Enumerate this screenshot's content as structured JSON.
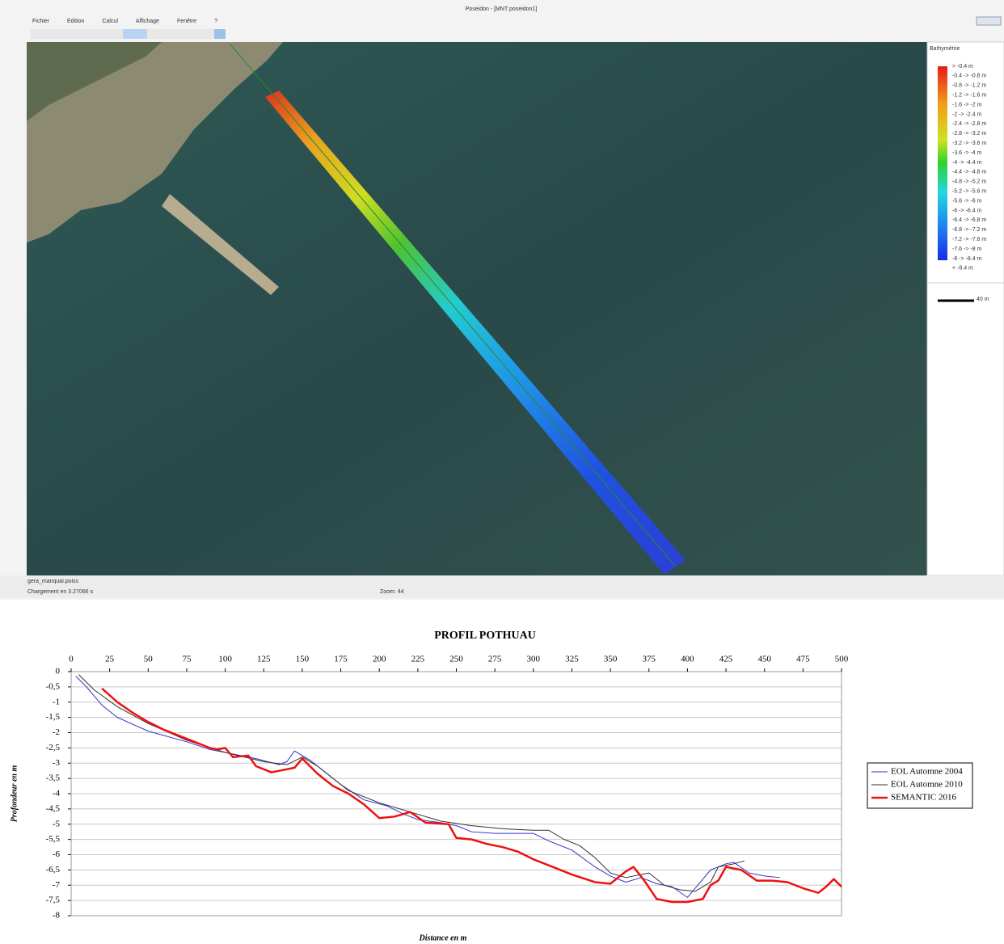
{
  "window": {
    "title": "Poseidon - [MNT poseidon1]",
    "menu": [
      "Fichier",
      "Edition",
      "Calcul",
      "Affichage",
      "Fenêtre",
      "?"
    ],
    "legend_title": "Bathymétrie",
    "legend_labels": [
      "> -0.4 m",
      "-0.4 -> -0.8 m",
      "-0.8 -> -1.2 m",
      "-1.2 -> -1.6 m",
      "-1.6 -> -2 m",
      "-2 -> -2.4 m",
      "-2.4 -> -2.8 m",
      "-2.8 -> -3.2 m",
      "-3.2 -> -3.6 m",
      "-3.6 -> -4 m",
      "-4 -> -4.4 m",
      "-4.4 -> -4.8 m",
      "-4.8 -> -5.2 m",
      "-5.2 -> -5.6 m",
      "-5.6 -> -6 m",
      "-6 -> -6.4 m",
      "-6.4 -> -6.8 m",
      "-6.8 -> -7.2 m",
      "-7.2 -> -7.6 m",
      "-7.6 -> -8 m",
      "-8 -> -8.4 m",
      "< -8.4 m"
    ],
    "scale_label": "40 m",
    "status_file": "gera_manquai.poiss",
    "status_load": "Chargement en 3.27066 s",
    "status_zoom": "Zoom: 44"
  },
  "chart_data": {
    "type": "line",
    "title": "PROFIL POTHUAU",
    "x_label": "Distance en m",
    "y_label": "Profondeur en m",
    "xlim": [
      0,
      500
    ],
    "xticks": [
      0,
      25,
      50,
      75,
      100,
      125,
      150,
      175,
      200,
      225,
      250,
      275,
      300,
      325,
      350,
      375,
      400,
      425,
      450,
      475,
      500
    ],
    "ylim": [
      -8,
      0
    ],
    "yticks": [
      0,
      {
        "value": -0.5,
        "label": "-0,5"
      },
      -1,
      {
        "value": -1.5,
        "label": "-1,5"
      },
      -2,
      {
        "value": -2.5,
        "label": "-2,5"
      },
      -3,
      {
        "value": -3.5,
        "label": "-3,5"
      },
      -4,
      {
        "value": -4.5,
        "label": "-4,5"
      },
      -5,
      {
        "value": -5.5,
        "label": "-5,5"
      },
      -6,
      {
        "value": -6.5,
        "label": "-6,5"
      },
      -7,
      {
        "value": -7.5,
        "label": "-7,5"
      },
      -8
    ],
    "grid": true,
    "legend": "right",
    "series": [
      {
        "name": "EOL  Automne 2004",
        "color": "#3333cc",
        "width": 1,
        "x": [
          3,
          10,
          20,
          30,
          50,
          75,
          90,
          100,
          120,
          135,
          140,
          145,
          155,
          175,
          190,
          205,
          215,
          225,
          240,
          250,
          260,
          275,
          290,
          300,
          310,
          325,
          340,
          350,
          360,
          370,
          380,
          390,
          400,
          405,
          415,
          425,
          430,
          440,
          450,
          460
        ],
        "values": [
          -0.15,
          -0.5,
          -1.1,
          -1.5,
          -1.95,
          -2.3,
          -2.55,
          -2.65,
          -2.85,
          -3.05,
          -2.95,
          -2.6,
          -2.9,
          -3.7,
          -4.2,
          -4.4,
          -4.65,
          -4.85,
          -4.95,
          -5.05,
          -5.25,
          -5.3,
          -5.3,
          -5.3,
          -5.55,
          -5.85,
          -6.4,
          -6.7,
          -6.9,
          -6.75,
          -6.95,
          -7.05,
          -7.4,
          -7.1,
          -6.5,
          -6.3,
          -6.25,
          -6.6,
          -6.7,
          -6.75
        ]
      },
      {
        "name": "EOL  Automne 2010",
        "color": "#333333",
        "width": 1,
        "x": [
          5,
          15,
          30,
          50,
          75,
          100,
          125,
          140,
          150,
          160,
          180,
          200,
          220,
          240,
          260,
          280,
          300,
          310,
          320,
          330,
          340,
          350,
          360,
          375,
          385,
          395,
          405,
          415,
          420,
          430,
          437
        ],
        "values": [
          -0.1,
          -0.6,
          -1.15,
          -1.7,
          -2.25,
          -2.65,
          -2.95,
          -3.05,
          -2.8,
          -3.1,
          -3.9,
          -4.3,
          -4.6,
          -4.9,
          -5.05,
          -5.15,
          -5.2,
          -5.2,
          -5.5,
          -5.7,
          -6.1,
          -6.6,
          -6.75,
          -6.6,
          -7,
          -7.15,
          -7.2,
          -6.9,
          -6.4,
          -6.3,
          -6.2
        ]
      },
      {
        "name": "SEMANTIC 2016",
        "color": "#ee1111",
        "width": 2.5,
        "x": [
          20,
          30,
          40,
          50,
          60,
          75,
          90,
          95,
          100,
          105,
          115,
          120,
          130,
          140,
          145,
          150,
          160,
          170,
          180,
          190,
          200,
          210,
          220,
          230,
          245,
          250,
          260,
          270,
          280,
          290,
          300,
          310,
          325,
          340,
          350,
          360,
          365,
          372,
          380,
          390,
          400,
          410,
          415,
          420,
          425,
          435,
          445,
          455,
          465,
          475,
          485,
          490,
          495,
          500
        ],
        "values": [
          -0.55,
          -1,
          -1.35,
          -1.65,
          -1.9,
          -2.2,
          -2.5,
          -2.55,
          -2.5,
          -2.8,
          -2.75,
          -3.1,
          -3.3,
          -3.2,
          -3.15,
          -2.85,
          -3.35,
          -3.75,
          -4,
          -4.35,
          -4.8,
          -4.75,
          -4.6,
          -4.95,
          -5,
          -5.45,
          -5.5,
          -5.65,
          -5.75,
          -5.9,
          -6.15,
          -6.35,
          -6.65,
          -6.9,
          -6.95,
          -6.55,
          -6.4,
          -6.85,
          -7.45,
          -7.55,
          -7.55,
          -7.45,
          -7,
          -6.85,
          -6.4,
          -6.5,
          -6.85,
          -6.85,
          -6.9,
          -7.1,
          -7.25,
          -7.05,
          -6.8,
          -7.05
        ]
      }
    ]
  }
}
